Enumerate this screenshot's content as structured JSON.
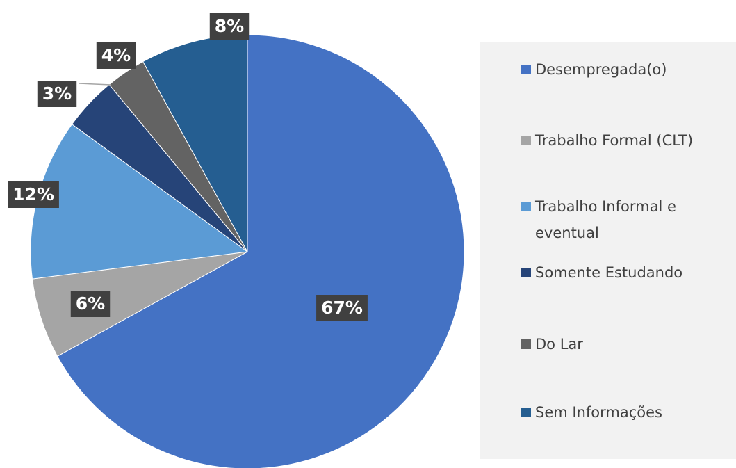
{
  "chart_data": {
    "type": "pie",
    "categories": [
      "Desempregada(o)",
      "Trabalho Formal (CLT)",
      "Trabalho Informal e eventual",
      "Somente Estudando",
      "Do Lar",
      "Sem Informações"
    ],
    "values": [
      67,
      6,
      12,
      4,
      3,
      8
    ],
    "value_labels": [
      "67%",
      "6%",
      "12%",
      "4%",
      "3%",
      "8%"
    ],
    "colors": [
      "#4472c4",
      "#a5a5a5",
      "#5b9bd5",
      "#264478",
      "#636363",
      "#255e91"
    ],
    "legend": "right"
  }
}
